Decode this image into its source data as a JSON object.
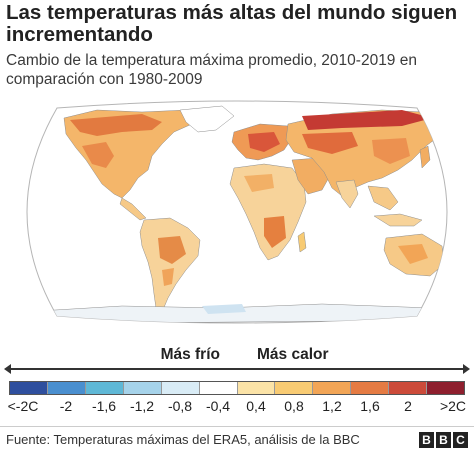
{
  "header": {
    "title": "Las temperaturas más altas del mundo siguen incrementando",
    "subtitle": "Cambio de la temperatura máxima promedio, 2010-2019 en comparación con 1980-2009"
  },
  "map": {
    "description_colors": {
      "ocean": "#ffffff",
      "outline": "#9aa3ad",
      "land_base": "#f6cf8a"
    }
  },
  "legend": {
    "cold_label": "Más frío",
    "hot_label": "Más calor",
    "colors": [
      "#2f4f9e",
      "#4a8fcf",
      "#5fb8d6",
      "#a6d3ea",
      "#d9ecf6",
      "#ffffff",
      "#fbe3a7",
      "#f8cb73",
      "#f2a556",
      "#e57b43",
      "#cc4b3a",
      "#8e1f2e"
    ],
    "ticks": [
      "<-2C",
      "-2",
      "-1,6",
      "-1,2",
      "-0,8",
      "-0,4",
      "0,4",
      "0,8",
      "1,2",
      "1,6",
      "2",
      ">2C"
    ]
  },
  "footer": {
    "source": "Fuente: Temperaturas máximas del ERA5, análisis de la BBC",
    "logo_letters": [
      "B",
      "B",
      "C"
    ]
  }
}
